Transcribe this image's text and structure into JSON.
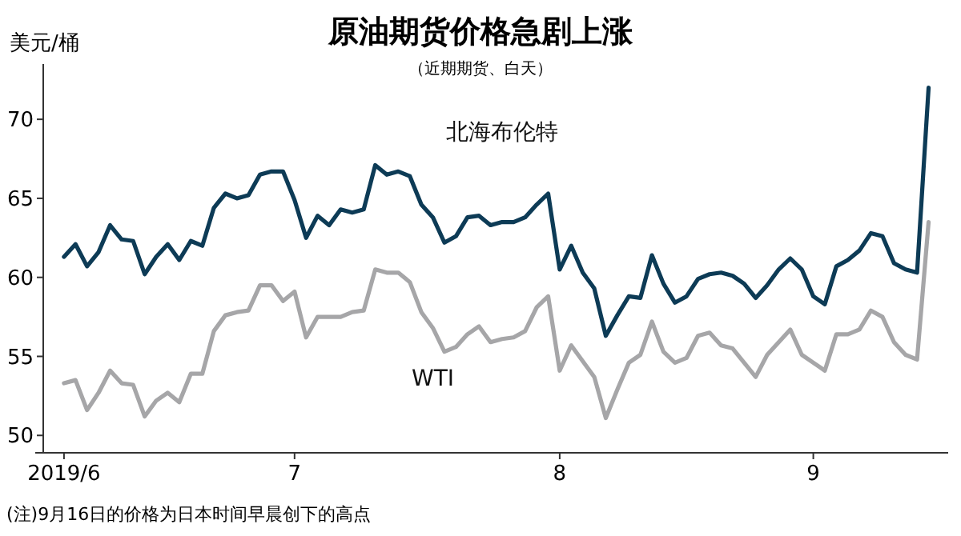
{
  "chart_data": {
    "type": "line",
    "title": "原油期货价格急剧上涨",
    "subtitle": "（近期期货、白天）",
    "ylabel": "美元/桶",
    "annotations": [
      "(注)9月16日的价格为日本时间早晨创下的高点"
    ],
    "categories": [
      "2019/6",
      null,
      null,
      null,
      null,
      null,
      null,
      null,
      null,
      null,
      null,
      null,
      null,
      null,
      null,
      null,
      null,
      null,
      null,
      null,
      "7",
      null,
      null,
      null,
      null,
      null,
      null,
      null,
      null,
      null,
      null,
      null,
      null,
      null,
      null,
      null,
      null,
      null,
      null,
      null,
      null,
      null,
      null,
      "8",
      null,
      null,
      null,
      null,
      null,
      null,
      null,
      null,
      null,
      null,
      null,
      null,
      null,
      null,
      null,
      null,
      null,
      null,
      null,
      null,
      null,
      "9",
      null,
      null,
      null,
      null,
      null,
      null,
      null,
      null,
      null,
      null
    ],
    "series": [
      {
        "name": "北海布伦特",
        "color": "#0d3b56",
        "values": [
          61.3,
          62.1,
          60.7,
          61.6,
          63.3,
          62.4,
          62.3,
          60.2,
          61.3,
          62.1,
          61.1,
          62.3,
          62.0,
          64.4,
          65.3,
          65.0,
          65.2,
          66.5,
          66.7,
          66.7,
          64.9,
          62.5,
          63.9,
          63.3,
          64.3,
          64.1,
          64.3,
          67.1,
          66.5,
          66.7,
          66.4,
          64.6,
          63.8,
          62.2,
          62.6,
          63.8,
          63.9,
          63.3,
          63.5,
          63.5,
          63.8,
          64.6,
          65.3,
          60.5,
          62.0,
          60.3,
          59.3,
          56.3,
          57.6,
          58.8,
          58.7,
          61.4,
          59.6,
          58.4,
          58.8,
          59.9,
          60.2,
          60.3,
          60.1,
          59.6,
          58.7,
          59.5,
          60.5,
          61.2,
          60.5,
          58.8,
          58.3,
          60.7,
          61.1,
          61.7,
          62.8,
          62.6,
          60.9,
          60.5,
          60.3,
          72
        ]
      },
      {
        "name": "WTI",
        "color": "#a6a6a8",
        "values": [
          53.3,
          53.5,
          51.6,
          52.7,
          54.1,
          53.3,
          53.2,
          51.2,
          52.2,
          52.7,
          52.1,
          53.9,
          53.9,
          56.6,
          57.6,
          57.8,
          57.9,
          59.5,
          59.5,
          58.5,
          59.1,
          56.2,
          57.5,
          57.5,
          57.5,
          57.8,
          57.9,
          60.5,
          60.3,
          60.3,
          59.7,
          57.8,
          56.8,
          55.3,
          55.6,
          56.4,
          56.9,
          55.9,
          56.1,
          56.2,
          56.6,
          58.1,
          58.8,
          54.1,
          55.7,
          54.7,
          53.7,
          51.1,
          52.9,
          54.6,
          55.1,
          57.2,
          55.3,
          54.6,
          54.9,
          56.3,
          56.5,
          55.7,
          55.5,
          54.6,
          53.7,
          55.1,
          55.9,
          56.7,
          55.1,
          54.6,
          54.1,
          56.4,
          56.4,
          56.7,
          57.9,
          57.5,
          55.9,
          55.1,
          54.8,
          63.5
        ]
      }
    ],
    "ylim": [
      48.9,
      73.5
    ],
    "yticks": [
      50,
      55,
      60,
      65,
      70
    ],
    "grid": false,
    "legend": false,
    "marker": "none",
    "line_style": "solid"
  }
}
